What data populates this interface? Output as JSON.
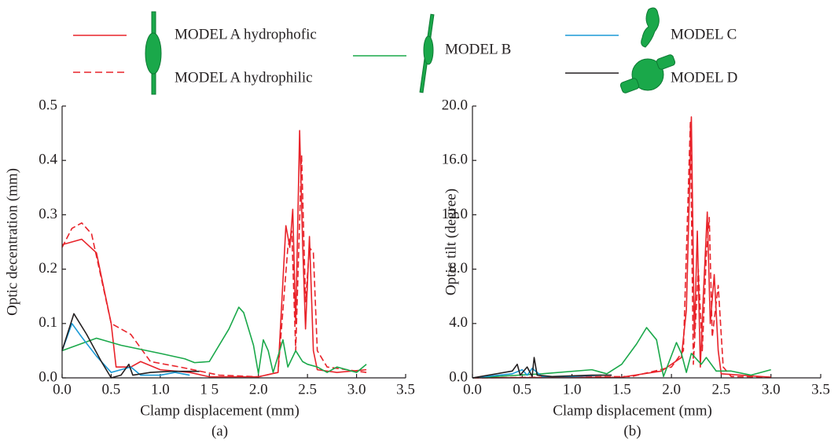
{
  "chart_data": [
    {
      "type": "line",
      "xlabel": "Clamp displacement (mm)",
      "ylabel": "Optic decentration (mm)",
      "caption": "(a)",
      "xlim": [
        0,
        3.5
      ],
      "ylim": [
        0,
        0.5
      ],
      "xticks": [
        {
          "value": 0,
          "label": "0.0"
        },
        0.5,
        {
          "value": 1,
          "label": "1.0"
        },
        {
          "value": 1.5,
          "label": "1 5"
        },
        {
          "value": 2,
          "label": "2.0"
        },
        2.5,
        {
          "value": 3,
          "label": "3.0"
        },
        3.5
      ],
      "yticks": [
        {
          "value": 0,
          "label": "0.0"
        },
        0.1,
        0.2,
        0.3,
        0.4,
        0.5
      ],
      "series": [
        {
          "name": "MODEL A hydrophofic",
          "color": "#e8232a",
          "dash": false,
          "x": [
            0,
            0.2,
            0.35,
            0.5,
            0.55,
            0.7,
            0.8,
            1.0,
            1.3,
            1.5,
            2.0,
            2.2,
            2.28,
            2.32,
            2.35,
            2.38,
            2.42,
            2.45,
            2.48,
            2.52,
            2.56,
            2.6,
            2.8,
            3.1
          ],
          "values": [
            0.245,
            0.255,
            0.23,
            0.1,
            0.02,
            0.02,
            0.03,
            0.015,
            0.01,
            0.002,
            0.002,
            0.01,
            0.28,
            0.24,
            0.31,
            0.1,
            0.455,
            0.25,
            0.09,
            0.26,
            0.05,
            0.015,
            0.01,
            0.015
          ]
        },
        {
          "name": "MODEL A hydrophilic",
          "color": "#e8232a",
          "dash": true,
          "x": [
            0,
            0.1,
            0.2,
            0.3,
            0.5,
            0.7,
            0.9,
            1.2,
            1.6,
            2.0,
            2.2,
            2.3,
            2.34,
            2.38,
            2.44,
            2.48,
            2.52,
            2.56,
            2.6,
            2.7,
            3.1
          ],
          "values": [
            0.24,
            0.275,
            0.285,
            0.265,
            0.1,
            0.08,
            0.03,
            0.02,
            0.005,
            0.002,
            0.01,
            0.24,
            0.27,
            0.05,
            0.41,
            0.14,
            0.24,
            0.23,
            0.05,
            0.02,
            0.01
          ]
        },
        {
          "name": "MODEL B",
          "color": "#1aa84a",
          "dash": false,
          "x": [
            0,
            0.35,
            0.6,
            1.0,
            1.25,
            1.35,
            1.5,
            1.7,
            1.8,
            1.85,
            1.95,
            2.0,
            2.05,
            2.1,
            2.15,
            2.25,
            2.3,
            2.38,
            2.45,
            2.5,
            2.6,
            2.7,
            2.8,
            3.0,
            3.1
          ],
          "values": [
            0.05,
            0.073,
            0.06,
            0.045,
            0.035,
            0.028,
            0.03,
            0.09,
            0.13,
            0.12,
            0.06,
            0.008,
            0.07,
            0.05,
            0.01,
            0.07,
            0.02,
            0.05,
            0.03,
            0.025,
            0.02,
            0.01,
            0.02,
            0.01,
            0.025
          ]
        },
        {
          "name": "MODEL C",
          "color": "#1b9ad6",
          "dash": false,
          "x": [
            0,
            0.1,
            0.2,
            0.35,
            0.5,
            0.6,
            0.7,
            0.8,
            1.0,
            1.15,
            1.3
          ],
          "values": [
            0.05,
            0.1,
            0.075,
            0.04,
            0.01,
            0.015,
            0.02,
            0.005,
            0.005,
            0.01,
            0.005
          ]
        },
        {
          "name": "MODEL D",
          "color": "#231f20",
          "dash": false,
          "x": [
            0,
            0.12,
            0.25,
            0.4,
            0.5,
            0.6,
            0.68,
            0.72,
            0.9,
            1.1,
            1.4
          ],
          "values": [
            0.05,
            0.118,
            0.08,
            0.03,
            0,
            0.005,
            0.025,
            0.005,
            0.01,
            0.012,
            0.012
          ]
        }
      ]
    },
    {
      "type": "line",
      "xlabel": "Clamp displacement (mm)",
      "ylabel": "Optic tilt (degree)",
      "caption": "(b)",
      "xlim": [
        0,
        3.5
      ],
      "ylim": [
        0,
        20
      ],
      "xticks": [
        {
          "value": 0,
          "label": "0.0"
        },
        0.5,
        {
          "value": 1,
          "label": "1.0"
        },
        1.5,
        {
          "value": 2,
          "label": "2.0"
        },
        2.5,
        {
          "value": 3,
          "label": "3.0"
        },
        3.5
      ],
      "yticks": [
        {
          "value": 0,
          "label": "0.0"
        },
        {
          "value": 4,
          "label": "4.0"
        },
        {
          "value": 8,
          "label": "8.0"
        },
        {
          "value": 12,
          "label": "12.0"
        },
        {
          "value": 16,
          "label": "16.0"
        },
        {
          "value": 20,
          "label": "20.0"
        }
      ],
      "series": [
        {
          "color": "#e8232a",
          "dash": false,
          "x": [
            0,
            1.5,
            1.9,
            2.1,
            2.15,
            2.2,
            2.23,
            2.26,
            2.29,
            2.32,
            2.36,
            2.39,
            2.43,
            2.47,
            2.5,
            3.0
          ],
          "values": [
            0,
            0.05,
            0.5,
            1.5,
            5,
            19.2,
            3,
            10.8,
            0.8,
            6,
            12.2,
            4,
            7.6,
            2,
            0.3,
            0.05
          ]
        },
        {
          "color": "#e8232a",
          "dash": true,
          "x": [
            0,
            1.6,
            2.0,
            2.12,
            2.19,
            2.22,
            2.27,
            2.31,
            2.35,
            2.38,
            2.41,
            2.47,
            2.52,
            2.6,
            3.0
          ],
          "values": [
            0,
            0.1,
            0.8,
            2,
            18.8,
            1,
            8,
            2,
            9,
            11.8,
            3,
            6.8,
            0.8,
            0.1,
            0.05
          ]
        },
        {
          "color": "#1aa84a",
          "dash": false,
          "x": [
            0,
            0.7,
            1.2,
            1.35,
            1.5,
            1.65,
            1.75,
            1.85,
            1.92,
            2.05,
            2.1,
            2.15,
            2.2,
            2.3,
            2.35,
            2.45,
            2.6,
            2.8,
            3.0
          ],
          "values": [
            0,
            0.3,
            0.6,
            0.3,
            1.0,
            2.5,
            3.7,
            2.8,
            0.1,
            2.6,
            1.8,
            0.4,
            1.8,
            1.0,
            1.5,
            0.5,
            0.5,
            0.2,
            0.6
          ]
        },
        {
          "color": "#1b9ad6",
          "dash": false,
          "x": [
            0,
            0.4,
            0.5,
            0.55,
            0.6,
            0.7,
            1.0,
            1.3
          ],
          "values": [
            0,
            0.3,
            0.6,
            0.2,
            0.7,
            0.1,
            0.1,
            0.2
          ]
        },
        {
          "color": "#231f20",
          "dash": false,
          "x": [
            0,
            0.4,
            0.45,
            0.48,
            0.55,
            0.6,
            0.62,
            0.65,
            0.8,
            1.2,
            1.4
          ],
          "values": [
            0,
            0.5,
            1.0,
            0.2,
            0.8,
            0.1,
            1.5,
            0.2,
            0.1,
            0.2,
            0.2
          ]
        }
      ]
    }
  ]
}
